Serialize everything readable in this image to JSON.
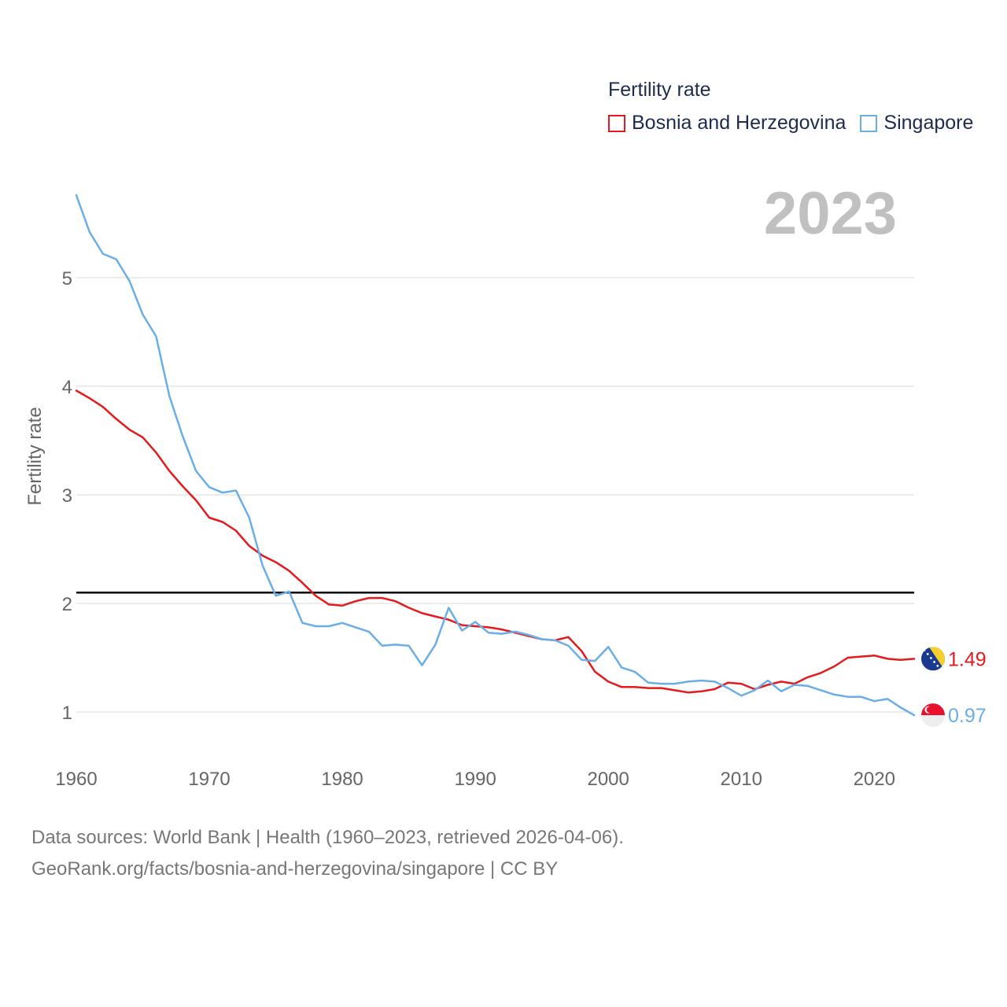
{
  "legend": {
    "title": "Fertility rate",
    "items": [
      {
        "label": "Bosnia and Herzegovina",
        "color": "#e41a1c"
      },
      {
        "label": "Singapore",
        "color": "#6aaee8"
      }
    ]
  },
  "year_label": "2023",
  "source": {
    "line1": "Data sources: World Bank | Health (1960–2023, retrieved 2026-04-06).",
    "line2": "GeoRank.org/facts/bosnia-and-herzegovina/singapore | CC BY"
  },
  "chart_data": {
    "type": "line",
    "title": "Fertility rate",
    "xlabel": "",
    "ylabel": "Fertility rate",
    "xlim": [
      1960,
      2023
    ],
    "ylim": [
      0.6,
      6.1
    ],
    "xticks": [
      1960,
      1970,
      1980,
      1990,
      2000,
      2010,
      2020
    ],
    "yticks": [
      1,
      2,
      3,
      4,
      5
    ],
    "reference_line": {
      "y": 2.1,
      "color": "#000000"
    },
    "x": [
      1960,
      1961,
      1962,
      1963,
      1964,
      1965,
      1966,
      1967,
      1968,
      1969,
      1970,
      1971,
      1972,
      1973,
      1974,
      1975,
      1976,
      1977,
      1978,
      1979,
      1980,
      1981,
      1982,
      1983,
      1984,
      1985,
      1986,
      1987,
      1988,
      1989,
      1990,
      1991,
      1992,
      1993,
      1994,
      1995,
      1996,
      1997,
      1998,
      1999,
      2000,
      2001,
      2002,
      2003,
      2004,
      2005,
      2006,
      2007,
      2008,
      2009,
      2010,
      2011,
      2012,
      2013,
      2014,
      2015,
      2016,
      2017,
      2018,
      2019,
      2020,
      2021,
      2022,
      2023
    ],
    "series": [
      {
        "name": "Bosnia and Herzegovina",
        "color": "#e41a1c",
        "end_label": "1.49",
        "values": [
          3.96,
          3.89,
          3.81,
          3.7,
          3.6,
          3.53,
          3.39,
          3.22,
          3.08,
          2.95,
          2.79,
          2.75,
          2.67,
          2.53,
          2.44,
          2.38,
          2.3,
          2.19,
          2.07,
          1.99,
          1.98,
          2.02,
          2.05,
          2.05,
          2.02,
          1.96,
          1.91,
          1.88,
          1.85,
          1.8,
          1.79,
          1.78,
          1.76,
          1.73,
          1.7,
          1.67,
          1.66,
          1.69,
          1.56,
          1.37,
          1.28,
          1.23,
          1.23,
          1.22,
          1.22,
          1.2,
          1.18,
          1.19,
          1.21,
          1.27,
          1.26,
          1.21,
          1.25,
          1.28,
          1.26,
          1.32,
          1.36,
          1.42,
          1.5,
          1.51,
          1.52,
          1.49,
          1.48,
          1.49
        ]
      },
      {
        "name": "Singapore",
        "color": "#6aaee8",
        "end_label": "0.97",
        "values": [
          5.76,
          5.42,
          5.22,
          5.17,
          4.97,
          4.66,
          4.46,
          3.91,
          3.54,
          3.22,
          3.07,
          3.02,
          3.04,
          2.79,
          2.35,
          2.07,
          2.11,
          1.82,
          1.79,
          1.79,
          1.82,
          1.78,
          1.74,
          1.61,
          1.62,
          1.61,
          1.43,
          1.62,
          1.96,
          1.75,
          1.83,
          1.73,
          1.72,
          1.74,
          1.71,
          1.67,
          1.66,
          1.61,
          1.48,
          1.47,
          1.6,
          1.41,
          1.37,
          1.27,
          1.26,
          1.26,
          1.28,
          1.29,
          1.28,
          1.22,
          1.15,
          1.2,
          1.29,
          1.19,
          1.25,
          1.24,
          1.2,
          1.16,
          1.14,
          1.14,
          1.1,
          1.12,
          1.04,
          0.97
        ]
      }
    ]
  }
}
